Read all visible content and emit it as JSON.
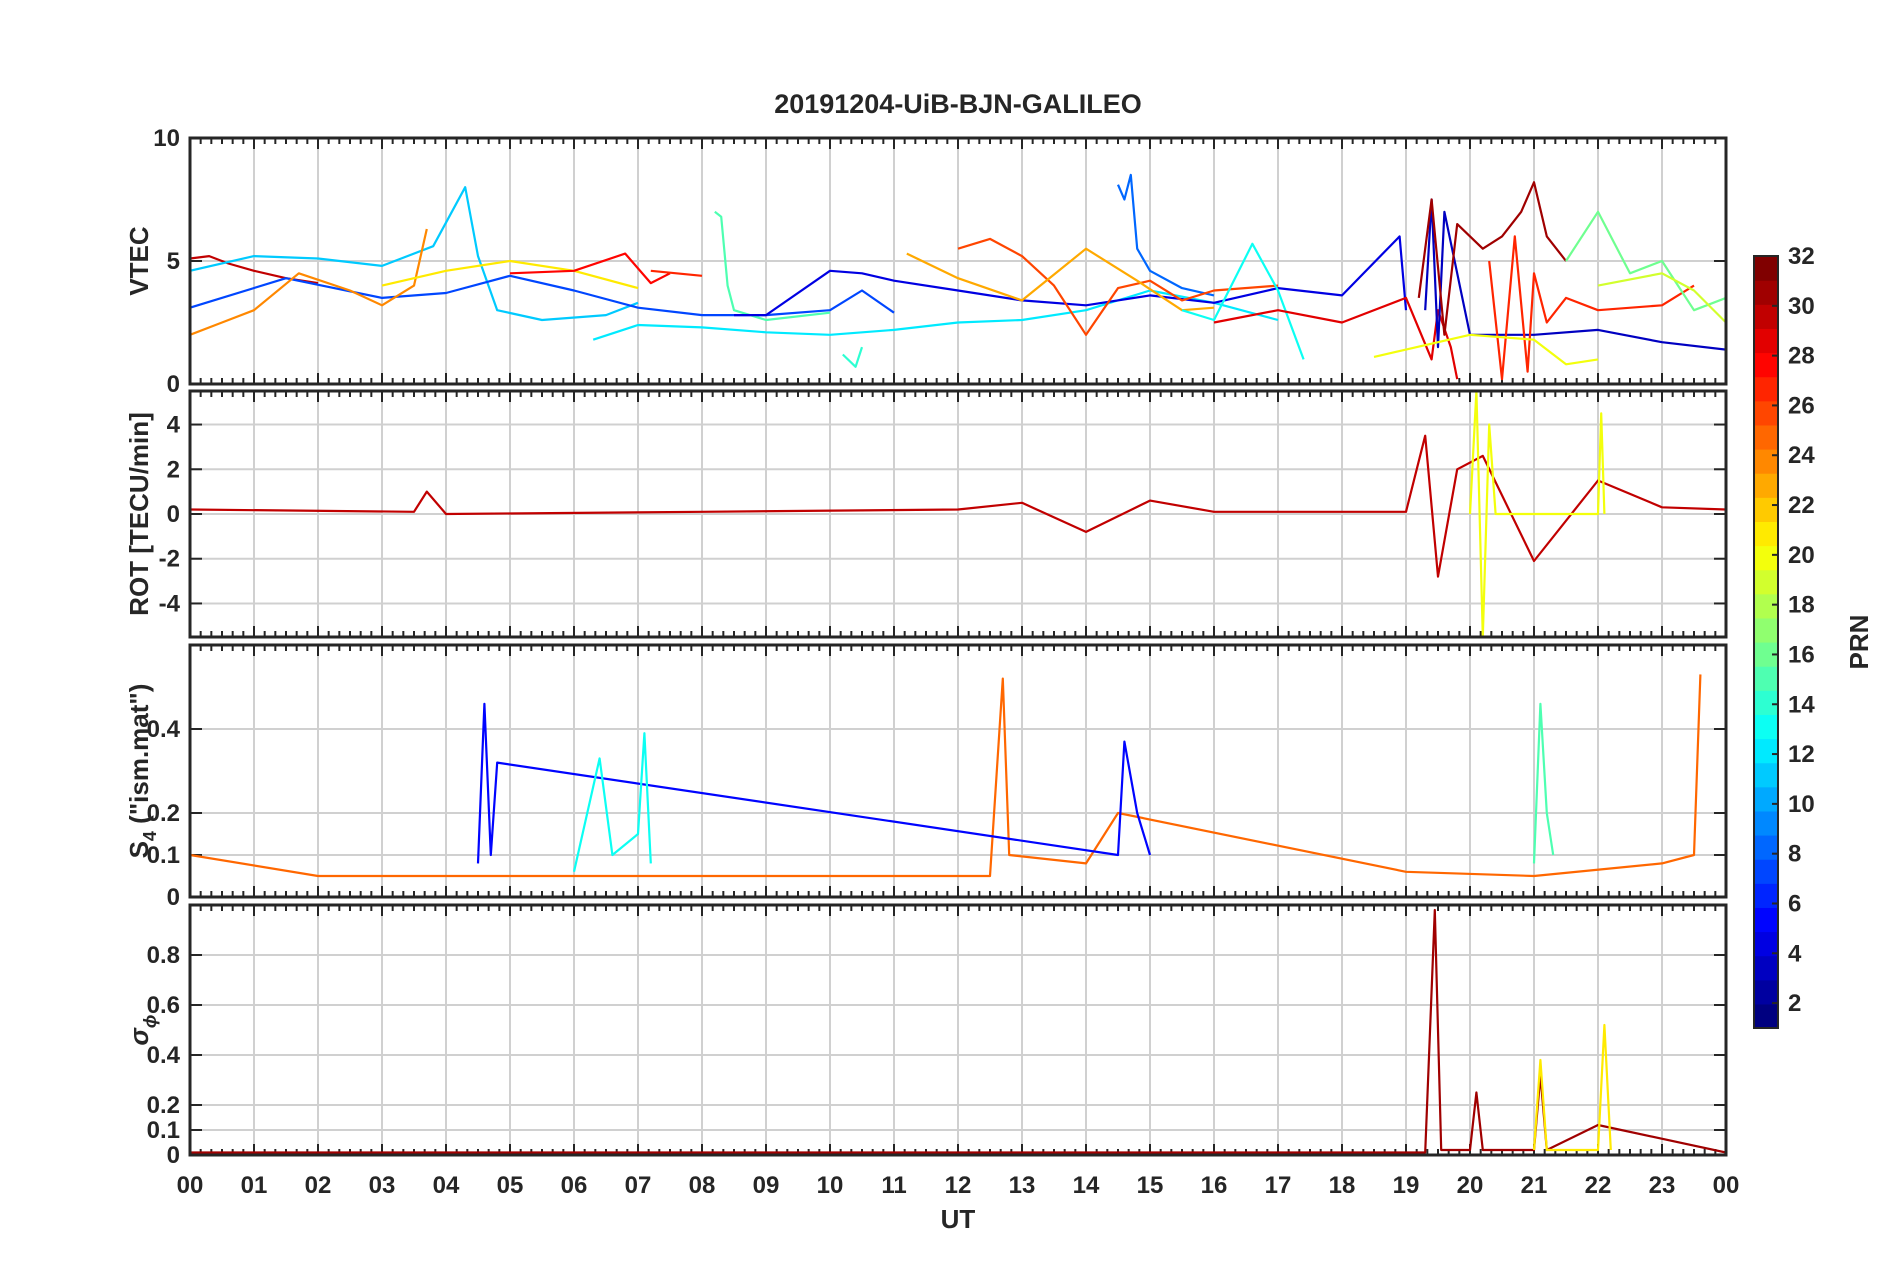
{
  "figure": {
    "title": "20191204-UiB-BJN-GALILEO",
    "xlabel": "UT"
  },
  "x_axis": {
    "range_hours": [
      0,
      24
    ],
    "tick_labels": [
      "00",
      "01",
      "02",
      "03",
      "04",
      "05",
      "06",
      "07",
      "08",
      "09",
      "10",
      "11",
      "12",
      "13",
      "14",
      "15",
      "16",
      "17",
      "18",
      "19",
      "20",
      "21",
      "22",
      "23",
      "00"
    ]
  },
  "panels": [
    {
      "id": "vtec",
      "ylabel": "VTEC",
      "ylim": [
        0,
        10
      ],
      "yticks": [
        0,
        5,
        10
      ],
      "ytick_labels": [
        "0",
        "5",
        "10"
      ],
      "gridlines": [
        5
      ]
    },
    {
      "id": "rot",
      "ylabel": "ROT [TECU/min]",
      "ylim": [
        -5.5,
        5.5
      ],
      "yticks": [
        -4,
        -2,
        0,
        2,
        4
      ],
      "ytick_labels": [
        "-4",
        "-2",
        "0",
        "2",
        "4"
      ],
      "gridlines": [
        -4,
        -2,
        0,
        2,
        4
      ]
    },
    {
      "id": "s4",
      "ylabel": "S",
      "ylabel_sub": "4",
      "ylabel_tail": " (\"ism.mat\")",
      "ylim": [
        0,
        0.6
      ],
      "yticks": [
        0,
        0.1,
        0.2,
        0.4
      ],
      "ytick_labels": [
        "0",
        "0.1",
        "0.2",
        "0.4"
      ],
      "gridlines": [
        0.1,
        0.2,
        0.4
      ]
    },
    {
      "id": "sigma",
      "ylabel": "σ",
      "ylabel_sub": "ϕ",
      "ylim": [
        0,
        1
      ],
      "yticks": [
        0,
        0.1,
        0.2,
        0.4,
        0.6,
        0.8
      ],
      "ytick_labels": [
        "0",
        "0.1",
        "0.2",
        "0.4",
        "0.6",
        "0.8"
      ],
      "gridlines": [
        0.1,
        0.2,
        0.4,
        0.6,
        0.8
      ]
    }
  ],
  "colorbar": {
    "label": "PRN",
    "range": [
      1,
      32
    ],
    "tick_values": [
      2,
      4,
      6,
      8,
      10,
      12,
      14,
      16,
      18,
      20,
      22,
      24,
      26,
      28,
      30,
      32
    ],
    "tick_labels": [
      "2",
      "4",
      "6",
      "8",
      "10",
      "12",
      "14",
      "16",
      "18",
      "20",
      "22",
      "24",
      "26",
      "28",
      "30",
      "32"
    ],
    "colormap": "jet"
  },
  "chart_data": {
    "type": "line",
    "title": "20191204-UiB-BJN-GALILEO",
    "xlabel": "UT",
    "grid": true,
    "color_by": "PRN",
    "series": [
      {
        "prn": 30,
        "panel": "vtec",
        "x": [
          0,
          0.3,
          0.6,
          1.0,
          1.5,
          2.0
        ],
        "y": [
          5.1,
          5.2,
          4.9,
          4.6,
          4.3,
          4.1
        ]
      },
      {
        "prn": 11,
        "panel": "vtec",
        "x": [
          0,
          1.0,
          2.0,
          3.0,
          3.8,
          4.3,
          4.5,
          4.8,
          5.5,
          6.5,
          7.0
        ],
        "y": [
          4.6,
          5.2,
          5.1,
          4.8,
          5.6,
          8.0,
          5.2,
          3.0,
          2.6,
          2.8,
          3.3
        ]
      },
      {
        "prn": 7,
        "panel": "vtec",
        "x": [
          0,
          1.5,
          3.0,
          4.0,
          5.0,
          6.0,
          7.0,
          8.0,
          9.0,
          10.0,
          10.5,
          11.0
        ],
        "y": [
          3.1,
          4.3,
          3.5,
          3.7,
          4.4,
          3.8,
          3.1,
          2.8,
          2.8,
          3.0,
          3.8,
          2.9
        ]
      },
      {
        "prn": 24,
        "panel": "vtec",
        "x": [
          0,
          0.5,
          1.0,
          1.7,
          2.5,
          3.0,
          3.5,
          3.7
        ],
        "y": [
          2.0,
          2.5,
          3.0,
          4.5,
          3.8,
          3.2,
          4.0,
          6.3
        ]
      },
      {
        "prn": 21,
        "panel": "vtec",
        "x": [
          3.0,
          4.0,
          5.0,
          6.0,
          7.0
        ],
        "y": [
          4.0,
          4.6,
          5.0,
          4.6,
          3.9
        ]
      },
      {
        "prn": 28,
        "panel": "vtec",
        "x": [
          5.0,
          6.0,
          6.8,
          7.2,
          7.5
        ],
        "y": [
          4.5,
          4.6,
          5.3,
          4.1,
          4.5
        ]
      },
      {
        "prn": 27,
        "panel": "vtec",
        "x": [
          7.2,
          8.0
        ],
        "y": [
          4.6,
          4.4
        ]
      },
      {
        "prn": 15,
        "panel": "vtec",
        "x": [
          8.2,
          8.3,
          8.4,
          8.5,
          9.0,
          10.0
        ],
        "y": [
          7.0,
          6.8,
          4.0,
          3.0,
          2.6,
          2.9
        ]
      },
      {
        "prn": 12,
        "panel": "vtec",
        "x": [
          6.3,
          7.0,
          8.0,
          9.0,
          10.0,
          11.0,
          12.0,
          13.0,
          14.0,
          15.0,
          16.0,
          17.0
        ],
        "y": [
          1.8,
          2.4,
          2.3,
          2.1,
          2.0,
          2.2,
          2.5,
          2.6,
          3.0,
          3.8,
          3.3,
          2.6
        ]
      },
      {
        "prn": 4,
        "panel": "vtec",
        "x": [
          8.5,
          9.0,
          10.0,
          10.5,
          11.0,
          12.0,
          13.0,
          14.0,
          15.0,
          16.0,
          17.0,
          18.0,
          18.9,
          19.0
        ],
        "y": [
          2.8,
          2.8,
          4.6,
          4.5,
          4.2,
          3.8,
          3.4,
          3.2,
          3.6,
          3.3,
          3.9,
          3.6,
          6.0,
          3.0
        ]
      },
      {
        "prn": 8,
        "panel": "vtec",
        "x": [
          14.5,
          14.6,
          14.7,
          14.8,
          15.0,
          15.5,
          16.0
        ],
        "y": [
          8.1,
          7.5,
          8.5,
          5.5,
          4.6,
          3.9,
          3.6
        ]
      },
      {
        "prn": 26,
        "panel": "vtec",
        "x": [
          12.0,
          12.5,
          13.0,
          13.5,
          14.0,
          14.5,
          15.0,
          15.5,
          16.0,
          17.0
        ],
        "y": [
          5.5,
          5.9,
          5.2,
          4.0,
          2.0,
          3.9,
          4.2,
          3.4,
          3.8,
          4.0
        ]
      },
      {
        "prn": 23,
        "panel": "vtec",
        "x": [
          11.2,
          12.0,
          13.0,
          14.0,
          14.8,
          15.5,
          16.0
        ],
        "y": [
          5.3,
          4.3,
          3.4,
          5.5,
          4.2,
          3.0,
          3.1
        ]
      },
      {
        "prn": 14,
        "panel": "vtec",
        "x": [
          10.2,
          10.4,
          10.5
        ],
        "y": [
          1.2,
          0.7,
          1.5
        ]
      },
      {
        "prn": 13,
        "panel": "vtec",
        "x": [
          15.5,
          16.0,
          16.6,
          17.0,
          17.4
        ],
        "y": [
          3.0,
          2.6,
          5.7,
          3.8,
          1.0
        ]
      },
      {
        "prn": 29,
        "panel": "vtec",
        "x": [
          16.0,
          17.0,
          18.0,
          19.0,
          19.4,
          19.5,
          19.7,
          19.8
        ],
        "y": [
          2.5,
          3.0,
          2.5,
          3.5,
          1.0,
          3.0,
          1.5,
          0.2
        ]
      },
      {
        "prn": 3,
        "panel": "vtec",
        "x": [
          19.3,
          19.4,
          19.5,
          19.6,
          20.0,
          21.0,
          22.0,
          23.0,
          24.0
        ],
        "y": [
          3.0,
          7.5,
          1.5,
          7.0,
          2.0,
          2.0,
          2.2,
          1.7,
          1.4
        ]
      },
      {
        "prn": 31,
        "panel": "vtec",
        "x": [
          19.2,
          19.4,
          19.6,
          19.8,
          20.2,
          20.5,
          20.8,
          21.0,
          21.2,
          21.5
        ],
        "y": [
          3.5,
          7.5,
          2.0,
          6.5,
          5.5,
          6.0,
          7.0,
          8.2,
          6.0,
          5.0
        ]
      },
      {
        "prn": 27,
        "panel": "vtec",
        "x": [
          20.3,
          20.5,
          20.7,
          20.9,
          21.0,
          21.2,
          21.5,
          22.0,
          23.0,
          23.5
        ],
        "y": [
          5.0,
          0.2,
          6.0,
          0.5,
          4.5,
          2.5,
          3.5,
          3.0,
          3.2,
          4.0
        ]
      },
      {
        "prn": 20,
        "panel": "vtec",
        "x": [
          18.5,
          19.0,
          20.0,
          21.0,
          21.5,
          22.0
        ],
        "y": [
          1.1,
          1.4,
          2.0,
          1.8,
          0.8,
          1.0
        ]
      },
      {
        "prn": 16,
        "panel": "vtec",
        "x": [
          21.5,
          22.0,
          22.5,
          23.0,
          23.5,
          24.0
        ],
        "y": [
          5.0,
          7.0,
          4.5,
          5.0,
          3.0,
          3.5
        ]
      },
      {
        "prn": 19,
        "panel": "vtec",
        "x": [
          22.0,
          23.0,
          23.5,
          24.0
        ],
        "y": [
          4.0,
          4.5,
          3.8,
          2.5
        ]
      },
      {
        "prn": 30,
        "panel": "rot",
        "x": [
          0,
          3.5,
          3.7,
          4.0,
          8.0,
          12.0,
          13.0,
          14.0,
          15.0,
          16.0,
          19.0,
          19.3,
          19.5,
          19.8,
          20.2,
          21.0,
          22.0,
          23.0,
          24.0
        ],
        "y": [
          0.2,
          0.1,
          1.0,
          0.0,
          0.1,
          0.2,
          0.5,
          -0.8,
          0.6,
          0.1,
          0.1,
          3.5,
          -2.8,
          2.0,
          2.6,
          -2.1,
          1.5,
          0.3,
          0.2
        ]
      },
      {
        "prn": 20,
        "panel": "rot",
        "x": [
          20.0,
          20.1,
          20.2,
          20.3,
          20.4,
          22.0,
          22.05,
          22.1
        ],
        "y": [
          0.0,
          5.5,
          -5.5,
          4.0,
          0.0,
          0.0,
          4.5,
          0.0
        ]
      },
      {
        "prn": 25,
        "panel": "s4",
        "x": [
          0,
          2.0,
          3.5,
          12.5,
          12.7,
          12.8,
          14.0,
          14.5,
          19.0,
          21.0,
          23.0,
          23.5,
          23.6
        ],
        "y": [
          0.1,
          0.05,
          0.05,
          0.05,
          0.52,
          0.1,
          0.08,
          0.2,
          0.06,
          0.05,
          0.08,
          0.1,
          0.53
        ]
      },
      {
        "prn": 5,
        "panel": "s4",
        "x": [
          4.5,
          4.6,
          4.7,
          4.8,
          14.5,
          14.6,
          14.8,
          15.0
        ],
        "y": [
          0.08,
          0.46,
          0.1,
          0.32,
          0.1,
          0.37,
          0.2,
          0.1
        ]
      },
      {
        "prn": 13,
        "panel": "s4",
        "x": [
          6.0,
          6.4,
          6.6,
          7.0,
          7.1,
          7.2
        ],
        "y": [
          0.06,
          0.33,
          0.1,
          0.15,
          0.39,
          0.08
        ]
      },
      {
        "prn": 15,
        "panel": "s4",
        "x": [
          21.0,
          21.1,
          21.2,
          21.3
        ],
        "y": [
          0.08,
          0.46,
          0.2,
          0.1
        ]
      },
      {
        "prn": 31,
        "panel": "sigma",
        "x": [
          0,
          19.3,
          19.45,
          19.55,
          20.0,
          20.1,
          20.2,
          21.0,
          21.1,
          21.2,
          22.0,
          24.0
        ],
        "y": [
          0.01,
          0.01,
          0.98,
          0.02,
          0.02,
          0.25,
          0.02,
          0.02,
          0.32,
          0.02,
          0.12,
          0.01
        ]
      },
      {
        "prn": 21,
        "panel": "sigma",
        "x": [
          21.0,
          21.1,
          21.2,
          22.0,
          22.1,
          22.2
        ],
        "y": [
          0.02,
          0.38,
          0.02,
          0.02,
          0.52,
          0.02
        ]
      }
    ]
  }
}
